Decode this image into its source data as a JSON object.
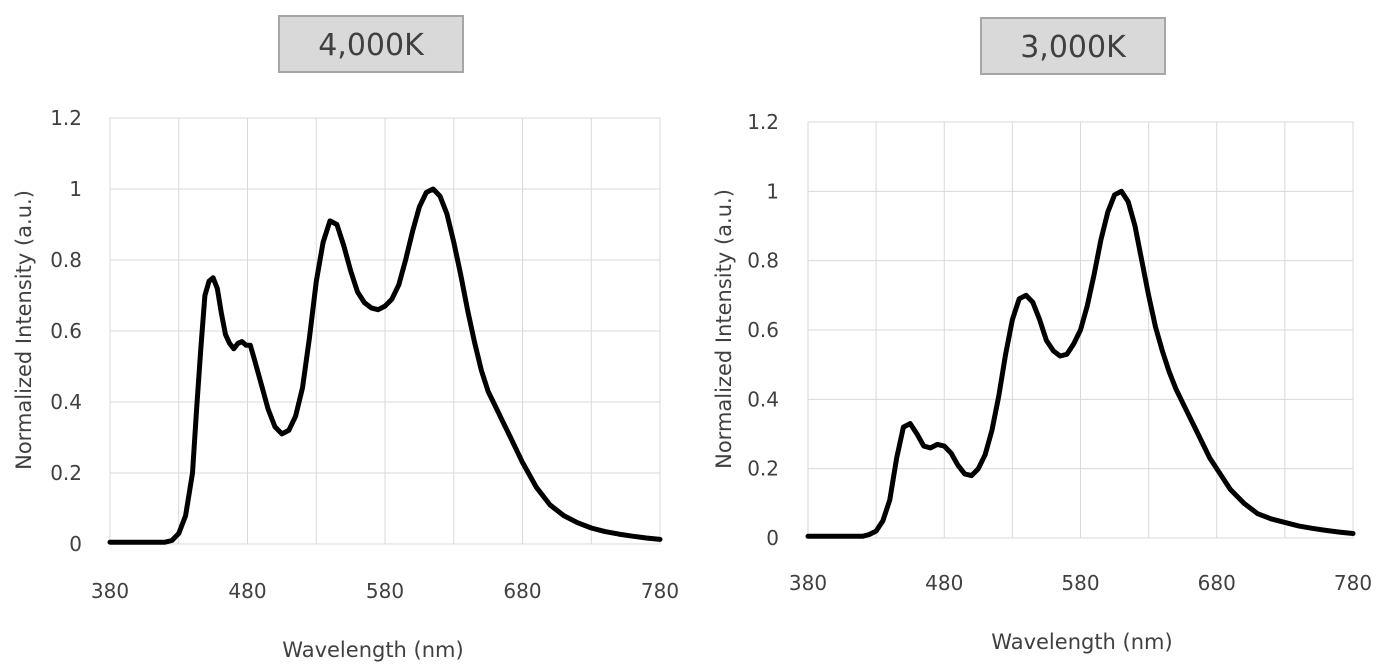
{
  "chart_data": [
    {
      "type": "line",
      "title": "4,000K",
      "xlabel": "Wavelength (nm)",
      "ylabel": "Normalized Intensity (a.u.)",
      "xlim": [
        380,
        780
      ],
      "ylim": [
        0,
        1.2
      ],
      "xticks": [
        380,
        480,
        580,
        680,
        780
      ],
      "yticks": [
        0,
        0.2,
        0.4,
        0.6,
        0.8,
        1,
        1.2
      ],
      "xtick_labels": [
        "380",
        "480",
        "580",
        "680",
        "780"
      ],
      "ytick_labels": [
        "0",
        "0.2",
        "0.4",
        "0.6",
        "0.8",
        "1",
        "1.2"
      ],
      "grid": true,
      "series": [
        {
          "color": "#000000",
          "x": [
            380,
            420,
            425,
            430,
            435,
            440,
            443,
            446,
            449,
            452,
            455,
            458,
            461,
            464,
            467,
            470,
            473,
            476,
            479,
            482,
            485,
            490,
            495,
            500,
            505,
            510,
            515,
            520,
            525,
            530,
            535,
            540,
            545,
            550,
            555,
            560,
            565,
            570,
            575,
            580,
            585,
            590,
            595,
            600,
            605,
            610,
            615,
            620,
            625,
            630,
            635,
            640,
            645,
            650,
            655,
            660,
            665,
            670,
            675,
            680,
            690,
            700,
            710,
            720,
            730,
            740,
            750,
            760,
            770,
            780
          ],
          "y": [
            0.005,
            0.005,
            0.01,
            0.03,
            0.08,
            0.2,
            0.38,
            0.55,
            0.7,
            0.74,
            0.75,
            0.72,
            0.65,
            0.59,
            0.565,
            0.55,
            0.565,
            0.57,
            0.56,
            0.56,
            0.52,
            0.45,
            0.38,
            0.33,
            0.31,
            0.32,
            0.36,
            0.44,
            0.58,
            0.74,
            0.85,
            0.91,
            0.9,
            0.84,
            0.77,
            0.71,
            0.68,
            0.665,
            0.66,
            0.67,
            0.69,
            0.73,
            0.8,
            0.88,
            0.95,
            0.99,
            1.0,
            0.98,
            0.93,
            0.85,
            0.76,
            0.66,
            0.57,
            0.49,
            0.43,
            0.39,
            0.35,
            0.31,
            0.27,
            0.23,
            0.16,
            0.11,
            0.08,
            0.06,
            0.045,
            0.035,
            0.028,
            0.022,
            0.017,
            0.013
          ]
        }
      ]
    },
    {
      "type": "line",
      "title": "3,000K",
      "xlabel": "Wavelength (nm)",
      "ylabel": "Normalized Intensity (a.u.)",
      "xlim": [
        380,
        780
      ],
      "ylim": [
        0,
        1.2
      ],
      "xticks": [
        380,
        480,
        580,
        680,
        780
      ],
      "yticks": [
        0,
        0.2,
        0.4,
        0.6,
        0.8,
        1,
        1.2
      ],
      "xtick_labels": [
        "380",
        "480",
        "580",
        "680",
        "780"
      ],
      "ytick_labels": [
        "0",
        "0.2",
        "0.4",
        "0.6",
        "0.8",
        "1",
        "1.2"
      ],
      "grid": true,
      "series": [
        {
          "color": "#000000",
          "x": [
            380,
            420,
            425,
            430,
            435,
            440,
            445,
            450,
            455,
            460,
            465,
            470,
            475,
            480,
            485,
            490,
            495,
            500,
            505,
            510,
            515,
            520,
            525,
            530,
            535,
            540,
            545,
            550,
            555,
            560,
            565,
            570,
            575,
            580,
            585,
            590,
            595,
            600,
            605,
            610,
            615,
            620,
            625,
            630,
            635,
            640,
            645,
            650,
            655,
            660,
            665,
            670,
            675,
            680,
            690,
            700,
            710,
            720,
            730,
            740,
            750,
            760,
            770,
            780
          ],
          "y": [
            0.005,
            0.005,
            0.01,
            0.02,
            0.05,
            0.11,
            0.23,
            0.32,
            0.33,
            0.3,
            0.265,
            0.26,
            0.27,
            0.265,
            0.245,
            0.21,
            0.185,
            0.18,
            0.2,
            0.24,
            0.31,
            0.41,
            0.53,
            0.63,
            0.69,
            0.7,
            0.68,
            0.63,
            0.57,
            0.54,
            0.525,
            0.53,
            0.56,
            0.6,
            0.67,
            0.76,
            0.86,
            0.94,
            0.99,
            1.0,
            0.97,
            0.9,
            0.8,
            0.7,
            0.61,
            0.54,
            0.48,
            0.43,
            0.39,
            0.35,
            0.31,
            0.27,
            0.23,
            0.2,
            0.14,
            0.1,
            0.07,
            0.055,
            0.045,
            0.035,
            0.028,
            0.022,
            0.017,
            0.013
          ]
        }
      ]
    }
  ]
}
